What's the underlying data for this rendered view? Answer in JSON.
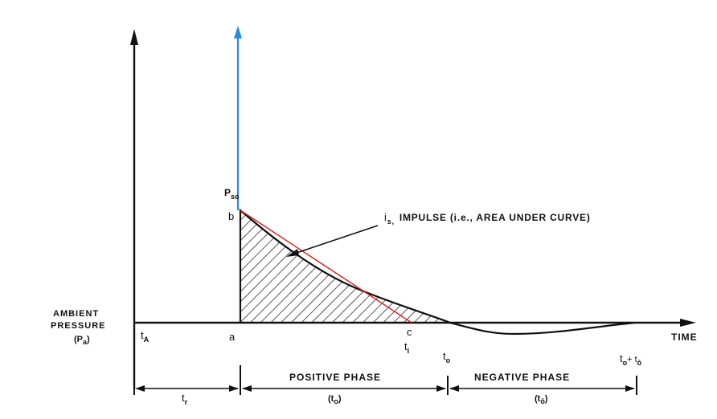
{
  "diagram": {
    "ambient_line1": "AMBIENT",
    "ambient_line2": "PRESSURE",
    "ambient_pa": "(P",
    "ambient_pa_sub": "a",
    "ambient_pa_close": ")",
    "t_a": "t",
    "t_a_sub": "A",
    "point_a": "a",
    "point_b": "b",
    "point_c": "c",
    "pso": "P",
    "pso_sub": "so",
    "ti": "t",
    "ti_sub": "i",
    "to": "t",
    "to_sub": "o",
    "time_label": "TIME",
    "to_plus": "t",
    "to_plus_sub": "o",
    "to_plus_plus": "+ t",
    "to_plus_sub2": "ō",
    "impulse_i": "i",
    "impulse_sub": "s,",
    "impulse_text": "IMPULSE (i.e., AREA UNDER CURVE)",
    "tr": "t",
    "tr_sub": "r",
    "positive_phase": "POSITIVE PHASE",
    "positive_phase_sub_open": "(t",
    "positive_phase_sub": "o",
    "positive_phase_sub_close": ")",
    "negative_phase": "NEGATIVE PHASE",
    "negative_phase_sub_open": "(t",
    "negative_phase_sub": "ō",
    "negative_phase_sub_close": ")"
  },
  "colors": {
    "axis": "#111111",
    "arrival_arrow": "#2b8be0",
    "linear_approx": "#e01b1b",
    "hatch": "#111111"
  }
}
